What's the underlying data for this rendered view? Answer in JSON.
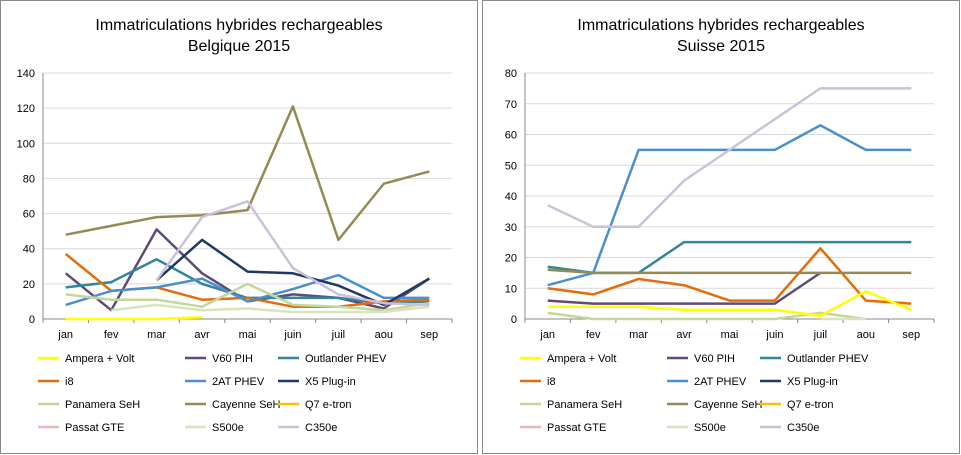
{
  "palette": {
    "Ampera + Volt": "#ffff00",
    "V60 PIH": "#604a7b",
    "Outlander PHEV": "#31859c",
    "i8": "#e46c0a",
    "2AT PHEV": "#4a8fd0",
    "X5 Plug-in": "#1f3864",
    "Panamera SeH": "#c4d79b",
    "Cayenne SeH": "#948a54",
    "Q7 e-tron": "#ffc000",
    "Passat GTE": "#e6b9b8",
    "S500e": "#d7e4bd",
    "C350e": "#ccc1da"
  },
  "chart_data": [
    {
      "type": "line",
      "title": "Immatriculations hybrides rechargeables",
      "subtitle": "Belgique 2015",
      "categories": [
        "jan",
        "fev",
        "mar",
        "avr",
        "mai",
        "juin",
        "juil",
        "aou",
        "sep"
      ],
      "ylim": [
        0,
        140
      ],
      "yticks": [
        0,
        20,
        40,
        60,
        80,
        100,
        120,
        140
      ],
      "legend_position": "bottom",
      "series": [
        {
          "name": "Ampera + Volt",
          "values": [
            0,
            0,
            0,
            1,
            null,
            null,
            null,
            null,
            null
          ]
        },
        {
          "name": "V60 PIH",
          "values": [
            26,
            5,
            51,
            26,
            10,
            14,
            12,
            6,
            23
          ]
        },
        {
          "name": "Outlander PHEV",
          "values": [
            18,
            21,
            34,
            20,
            12,
            12,
            12,
            9,
            10
          ]
        },
        {
          "name": "i8",
          "values": [
            37,
            16,
            18,
            11,
            12,
            7,
            7,
            10,
            11
          ]
        },
        {
          "name": "2AT PHEV",
          "values": [
            8,
            16,
            18,
            23,
            10,
            17,
            25,
            12,
            12
          ]
        },
        {
          "name": "X5 Plug-in",
          "values": [
            null,
            null,
            22,
            45,
            27,
            26,
            19,
            8,
            23
          ]
        },
        {
          "name": "Panamera SeH",
          "values": [
            14,
            11,
            11,
            7,
            20,
            8,
            7,
            5,
            9
          ]
        },
        {
          "name": "Cayenne SeH",
          "values": [
            48,
            53,
            58,
            59,
            62,
            121,
            45,
            77,
            84
          ]
        },
        {
          "name": "Q7 e-tron",
          "values": [
            null,
            null,
            null,
            null,
            null,
            null,
            null,
            null,
            null
          ]
        },
        {
          "name": "Passat GTE",
          "values": [
            null,
            null,
            null,
            null,
            null,
            null,
            null,
            null,
            null
          ]
        },
        {
          "name": "S500e",
          "values": [
            null,
            5,
            8,
            5,
            6,
            4,
            4,
            4,
            7
          ]
        },
        {
          "name": "C350e",
          "values": [
            null,
            null,
            22,
            58,
            67,
            29,
            14,
            9,
            8
          ]
        }
      ]
    },
    {
      "type": "line",
      "title": "Immatriculations hybrides rechargeables",
      "subtitle": "Suisse 2015",
      "categories": [
        "jan",
        "fev",
        "mar",
        "avr",
        "mai",
        "juin",
        "juil",
        "aou",
        "sep"
      ],
      "ylim": [
        0,
        80
      ],
      "yticks": [
        0,
        10,
        20,
        30,
        40,
        50,
        60,
        70,
        80
      ],
      "legend_position": "bottom",
      "series": [
        {
          "name": "Ampera + Volt",
          "values": [
            4,
            4,
            4,
            3,
            3,
            3,
            1,
            9,
            3
          ]
        },
        {
          "name": "V60 PIH",
          "values": [
            6,
            5,
            5,
            5,
            5,
            5,
            15,
            null,
            null
          ]
        },
        {
          "name": "Outlander PHEV",
          "values": [
            17,
            15,
            15,
            25,
            25,
            25,
            25,
            25,
            25
          ]
        },
        {
          "name": "i8",
          "values": [
            10,
            8,
            13,
            11,
            6,
            6,
            23,
            6,
            5
          ]
        },
        {
          "name": "2AT PHEV",
          "values": [
            11,
            15,
            55,
            55,
            55,
            55,
            63,
            55,
            55
          ]
        },
        {
          "name": "X5 Plug-in",
          "values": [
            null,
            null,
            null,
            null,
            null,
            null,
            null,
            null,
            null
          ]
        },
        {
          "name": "Panamera SeH",
          "values": [
            2,
            0,
            0,
            0,
            0,
            0,
            2,
            0,
            null
          ]
        },
        {
          "name": "Cayenne SeH",
          "values": [
            16,
            15,
            15,
            15,
            15,
            15,
            15,
            15,
            15
          ]
        },
        {
          "name": "Q7 e-tron",
          "values": [
            null,
            null,
            null,
            null,
            null,
            null,
            null,
            null,
            null
          ]
        },
        {
          "name": "Passat GTE",
          "values": [
            null,
            null,
            null,
            null,
            null,
            null,
            null,
            null,
            null
          ]
        },
        {
          "name": "S500e",
          "values": [
            null,
            null,
            null,
            null,
            null,
            null,
            0,
            0,
            null
          ]
        },
        {
          "name": "C350e",
          "values": [
            37,
            30,
            30,
            45,
            55,
            65,
            75,
            75,
            75
          ]
        }
      ]
    }
  ]
}
